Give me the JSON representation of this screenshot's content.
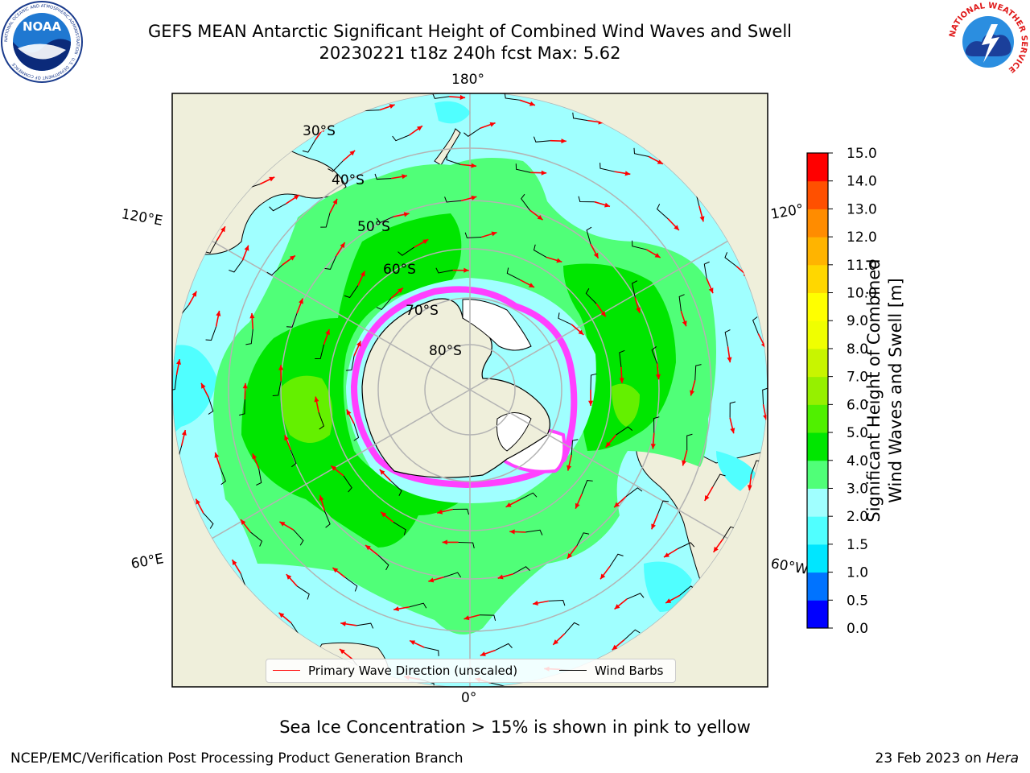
{
  "header": {
    "title_line1": "GEFS MEAN Antarctic Significant Height of Combined Wind Waves and Swell",
    "title_line2": "20230221 t18z 240h fcst   Max: 5.62"
  },
  "logos": {
    "noaa": {
      "text": "NOAA",
      "ring_text": "NATIONAL OCEANIC AND ATMOSPHERIC ADMINISTRATION · U.S. DEPARTMENT OF COMMERCE"
    },
    "nws": {
      "ring_text": "NATIONAL WEATHER SERVICE"
    }
  },
  "map": {
    "lon_labels": {
      "top": "180°",
      "bottom": "0°",
      "left_upper": "120°E",
      "left_lower": "60°E",
      "right_upper": "120°",
      "right_lower": "60°W"
    },
    "lat_labels": [
      "30°S",
      "40°S",
      "50°S",
      "60°S",
      "70°S",
      "80°S"
    ],
    "colors": {
      "ocean_low": "#00ffff",
      "ocean_2_3": "#a0ffff",
      "swell_3_4": "#50ff78",
      "swell_4_5": "#00e600",
      "swell_5_6": "#64f000",
      "land": "#efefdb",
      "sea_ice": "#ff40ff",
      "arrow": "#ff0000",
      "barb": "#000000"
    }
  },
  "legend": {
    "wave_label": "Primary Wave Direction (unscaled)",
    "barb_label": "Wind Barbs",
    "wave_color": "#ff0000",
    "barb_color": "#000000"
  },
  "colorbar": {
    "title_line1": "Significant Height of Combined",
    "title_line2": "Wind Waves and Swell [m]",
    "ticks": [
      "0.0",
      "0.5",
      "1.0",
      "1.5",
      "2.0",
      "3.0",
      "4.0",
      "5.0",
      "6.0",
      "7.0",
      "8.0",
      "9.0",
      "10.0",
      "11.0",
      "12.0",
      "13.0",
      "14.0",
      "15.0"
    ],
    "colors": [
      "#0000ff",
      "#0073ff",
      "#00e6ff",
      "#50ffff",
      "#a0ffff",
      "#50ff78",
      "#00e600",
      "#50f000",
      "#96f000",
      "#c8f500",
      "#f0ff00",
      "#ffff00",
      "#ffd700",
      "#ffb400",
      "#ff8c00",
      "#ff5000",
      "#ff0000"
    ]
  },
  "captions": {
    "sea_ice": "Sea Ice Concentration > 15% is shown in pink to yellow",
    "footer_left": "NCEP/EMC/Verification Post Processing Product Generation Branch",
    "footer_right_date": "23 Feb 2023 on",
    "footer_right_host": "Hera"
  }
}
